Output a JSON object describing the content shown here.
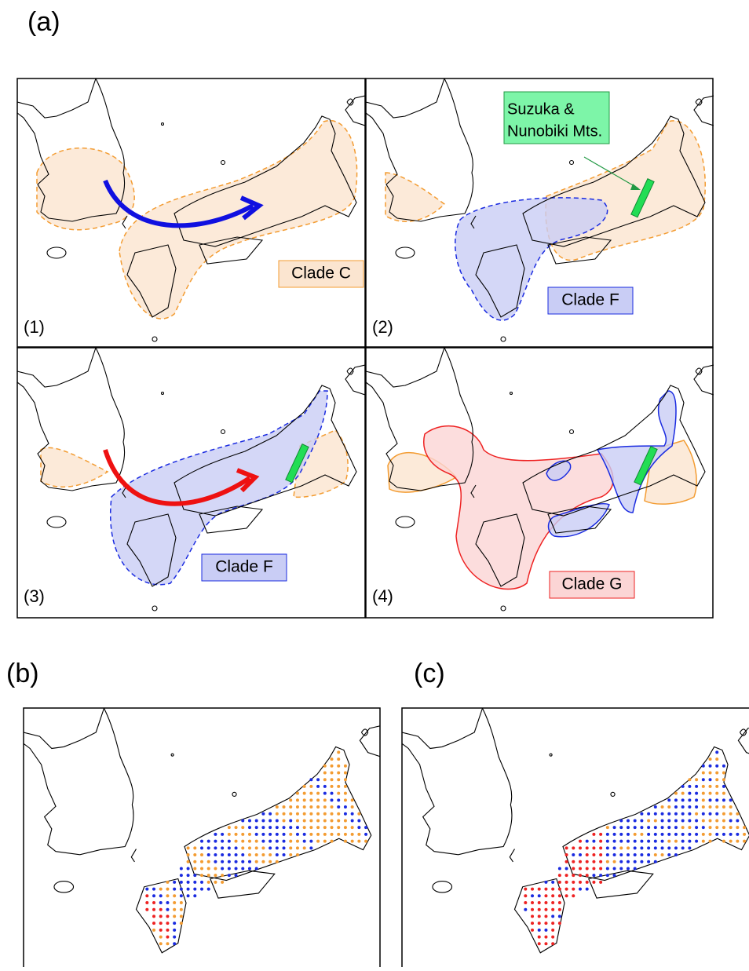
{
  "figure_labels": {
    "a": "(a)",
    "b": "(b)",
    "c": "(c)"
  },
  "panels": [
    {
      "label": "(1)",
      "clade": "Clade C"
    },
    {
      "label": "(2)",
      "clade": "Clade F"
    },
    {
      "label": "(3)",
      "clade": "Clade F"
    },
    {
      "label": "(4)",
      "clade": "Clade G"
    }
  ],
  "callout": [
    "Suzuka &",
    "Nunobiki Mts."
  ]
}
